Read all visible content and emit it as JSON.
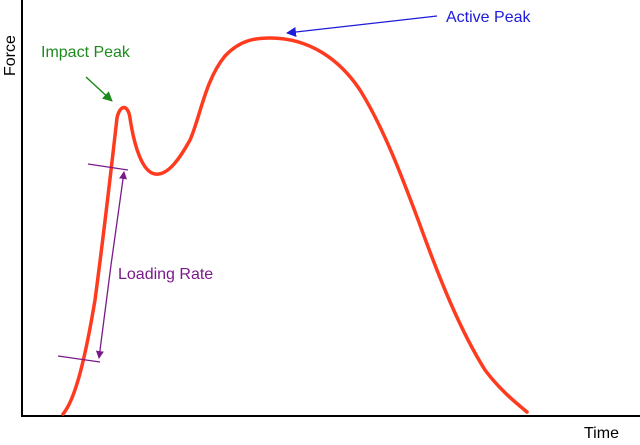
{
  "axes": {
    "y_title": "Force",
    "x_title": "Time"
  },
  "annotations": {
    "impact_peak": "Impact Peak",
    "active_peak": "Active Peak",
    "loading_rate": "Loading Rate"
  },
  "colors": {
    "curve": "#ff3b1f",
    "impact_peak": "#1e8a1e",
    "active_peak": "#1b1bd9",
    "loading_rate": "#7a1a8a",
    "axes": "#000000"
  }
}
